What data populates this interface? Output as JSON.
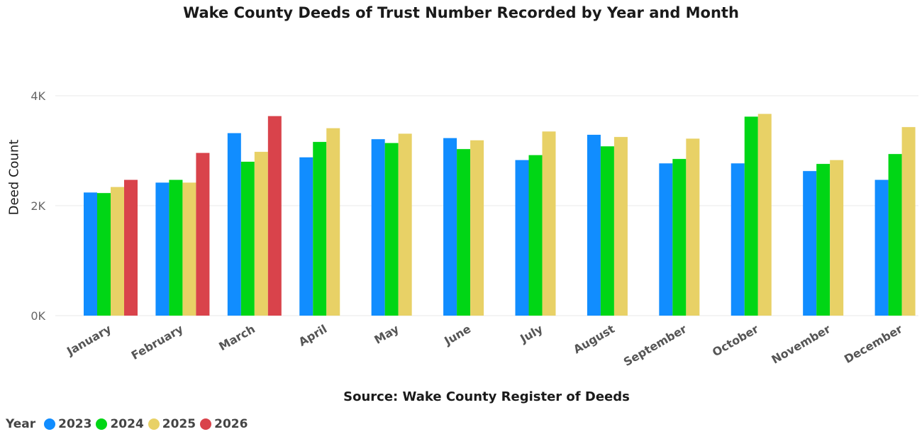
{
  "chart_data": {
    "type": "bar",
    "title": "Wake County Deeds of Trust Number Recorded by Year and Month",
    "ylabel": "Deed Count",
    "xlabel": "",
    "source": "Source: Wake County Register of Deeds",
    "ylim": [
      0,
      4000
    ],
    "yticks": [
      {
        "value": 0,
        "label": "0K"
      },
      {
        "value": 2000,
        "label": "2K"
      },
      {
        "value": 4000,
        "label": "4K"
      }
    ],
    "grid": true,
    "legend": {
      "title": "Year",
      "placement": "bottom-left"
    },
    "categories": [
      "January",
      "February",
      "March",
      "April",
      "May",
      "June",
      "July",
      "August",
      "September",
      "October",
      "November",
      "December"
    ],
    "series": [
      {
        "name": "2023",
        "color": "#118DFF",
        "values": [
          2240,
          2420,
          3320,
          2880,
          3210,
          3230,
          2830,
          3290,
          2770,
          2770,
          2630,
          2470
        ]
      },
      {
        "name": "2024",
        "color": "#00D615",
        "values": [
          2230,
          2470,
          2800,
          3160,
          3140,
          3030,
          2920,
          3080,
          2850,
          3620,
          2760,
          2940
        ]
      },
      {
        "name": "2025",
        "color": "#E8D166",
        "values": [
          2340,
          2420,
          2980,
          3410,
          3310,
          3190,
          3350,
          3250,
          3220,
          3670,
          2830,
          3430
        ]
      },
      {
        "name": "2026",
        "color": "#D9434B",
        "values": [
          2470,
          2960,
          3630,
          null,
          null,
          null,
          null,
          null,
          null,
          null,
          null,
          null
        ]
      }
    ]
  }
}
